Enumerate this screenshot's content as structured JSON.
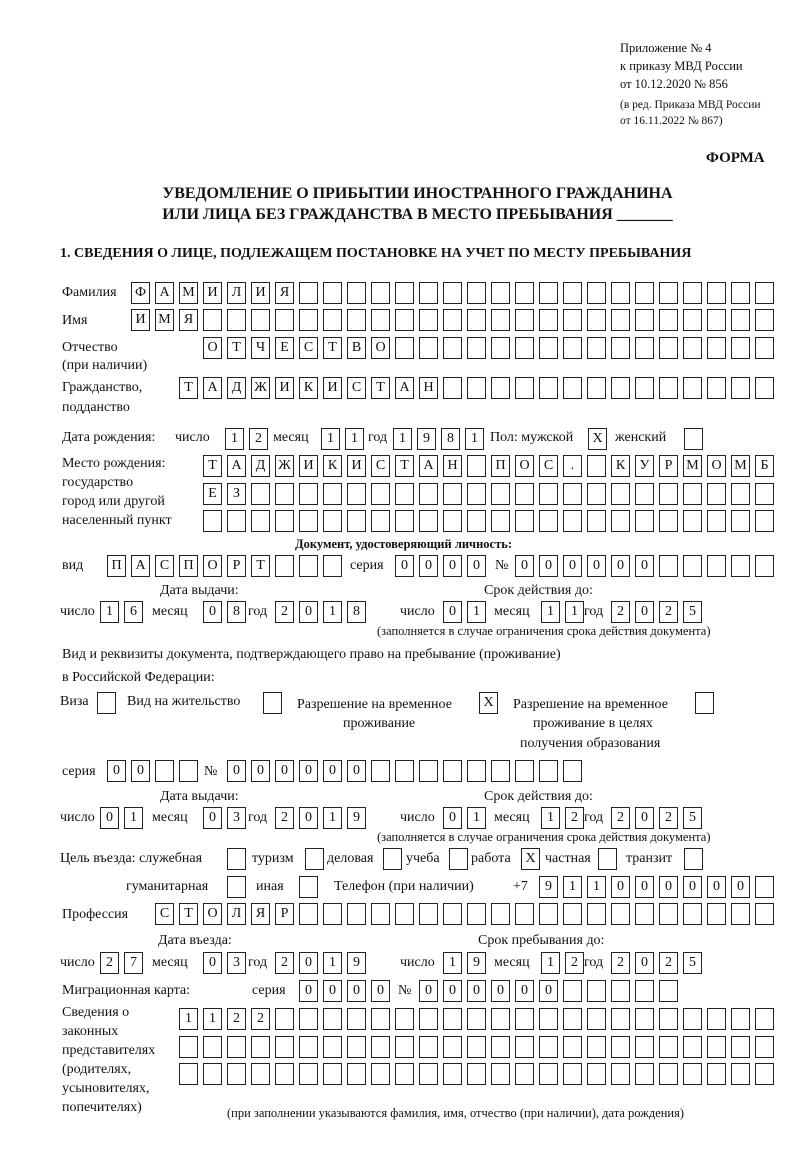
{
  "header": {
    "appendix": "Приложение № 4",
    "order": "к приказу МВД России",
    "order_date": "от 10.12.2020 № 856",
    "edition1": "(в ред. Приказа МВД России",
    "edition2": "от 16.11.2022 № 867)",
    "form_label": "ФОРМА",
    "title1": "УВЕДОМЛЕНИЕ О ПРИБЫТИИ ИНОСТРАННОГО ГРАЖДАНИНА",
    "title2": "ИЛИ ЛИЦА БЕЗ ГРАЖДАНСТВА В МЕСТО ПРЕБЫВАНИЯ _______",
    "section1": "1. СВЕДЕНИЯ О ЛИЦЕ, ПОДЛЕЖАЩЕМ ПОСТАНОВКЕ НА УЧЕТ ПО МЕСТУ ПРЕБЫВАНИЯ"
  },
  "labels": {
    "surname": "Фамилия",
    "name": "Имя",
    "patronymic": "Отчество",
    "patronymic_note": "(при наличии)",
    "citizenship": "Гражданство,",
    "citizenship2": "подданство",
    "birth_date": "Дата рождения:",
    "day": "число",
    "month": "месяц",
    "year": "год",
    "sex": "Пол: мужской",
    "female": "женский",
    "birth_place1": "Место рождения:",
    "birth_place2": "государство",
    "birth_place3": "город или другой",
    "birth_place4": "населенный пункт",
    "id_doc": "Документ, удостоверяющий личность:",
    "kind": "вид",
    "series": "серия",
    "number": "№",
    "issue_date": "Дата выдачи:",
    "valid_until": "Срок действия до:",
    "validity_note": "(заполняется в случае ограничения срока действия документа)",
    "stay_doc1": "Вид и реквизиты документа, подтверждающего право на пребывание (проживание)",
    "stay_doc2": "в Российской Федерации:",
    "visa": "Виза",
    "residence": "Вид на жительство",
    "temp_res1": "Разрешение на временное",
    "temp_res2": "проживание",
    "temp_edu1": "Разрешение на временное",
    "temp_edu2": "проживание в целях",
    "temp_edu3": "получения образования",
    "purpose": "Цель въезда: служебная",
    "tourism": "туризм",
    "business": "деловая",
    "study": "учеба",
    "work": "работа",
    "private": "частная",
    "transit": "транзит",
    "humanitarian": "гуманитарная",
    "other": "иная",
    "phone": "Телефон (при наличии)",
    "phone_prefix": "+7",
    "profession": "Профессия",
    "entry_date": "Дата въезда:",
    "stay_until": "Срок пребывания до:",
    "migration_card": "Миграционная карта:",
    "reps1": "Сведения о",
    "reps2": "законных",
    "reps3": "представителях",
    "reps4": "(родителях,",
    "reps5": "усыновителях,",
    "reps6": "попечителях)",
    "reps_note": "(при заполнении указываются фамилия, имя, отчество (при наличии), дата рождения)"
  },
  "values": {
    "surname": "ФАМИЛИЯ",
    "name": "ИМЯ",
    "patronymic": "ОТЧЕСТВО",
    "citizenship": "ТАДЖИКИСТАН",
    "birth_day": "12",
    "birth_month": "11",
    "birth_year": "1981",
    "sex_male": "X",
    "sex_female": "",
    "birth_place1": "ТАДЖИКИСТАН ПОС. КУРМОМБ",
    "birth_place2": "ЕЗ",
    "birth_place3": "",
    "id_kind": "ПАСПОРТ",
    "id_series": "0000",
    "id_number": "000000",
    "id_issue_day": "16",
    "id_issue_month": "08",
    "id_issue_year": "2018",
    "id_valid_day": "01",
    "id_valid_month": "11",
    "id_valid_year": "2025",
    "visa": "",
    "residence": "",
    "temp_res": "X",
    "temp_edu": "",
    "stay_series": "00",
    "stay_number": "000000",
    "stay_issue_day": "01",
    "stay_issue_month": "03",
    "stay_issue_year": "2019",
    "stay_valid_day": "01",
    "stay_valid_month": "12",
    "stay_valid_year": "2025",
    "p_service": "",
    "p_tourism": "",
    "p_business": "",
    "p_study": "",
    "p_work": "X",
    "p_private": "",
    "p_transit": "",
    "p_humanitarian": "",
    "p_other": "",
    "phone": "911000000",
    "profession": "СТОЛЯР",
    "entry_day": "27",
    "entry_month": "03",
    "entry_year": "2019",
    "stay_day": "19",
    "stay_month": "12",
    "stay_year": "2025",
    "mig_series": "0000",
    "mig_number": "000000",
    "reps1": "1122",
    "reps2": "",
    "reps3": ""
  }
}
